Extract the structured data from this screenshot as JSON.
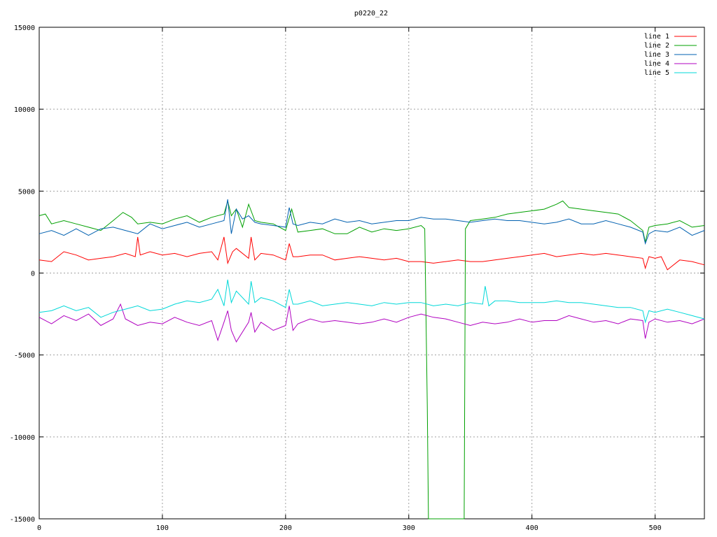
{
  "chart_data": {
    "type": "line",
    "title": "p0220_22",
    "xlabel": "",
    "ylabel": "",
    "xlim": [
      0,
      540
    ],
    "ylim": [
      -15000,
      15000
    ],
    "x_ticks": [
      0,
      100,
      200,
      300,
      400,
      500
    ],
    "y_ticks": [
      -15000,
      -10000,
      -5000,
      0,
      5000,
      10000,
      15000
    ],
    "grid": true,
    "legend_position": "top-right",
    "series": [
      {
        "name": "line 1",
        "color": "#ff0000",
        "x": [
          0,
          10,
          20,
          30,
          40,
          50,
          60,
          70,
          78,
          80,
          82,
          90,
          100,
          110,
          120,
          130,
          140,
          145,
          150,
          153,
          157,
          160,
          170,
          172,
          175,
          180,
          190,
          200,
          203,
          206,
          210,
          220,
          230,
          240,
          250,
          260,
          270,
          280,
          290,
          300,
          310,
          320,
          330,
          340,
          350,
          360,
          370,
          380,
          390,
          400,
          410,
          420,
          430,
          440,
          450,
          460,
          470,
          480,
          490,
          492,
          495,
          500,
          505,
          510,
          520,
          530,
          540
        ],
        "y": [
          800,
          700,
          1300,
          1100,
          800,
          900,
          1000,
          1200,
          1000,
          2200,
          1100,
          1300,
          1100,
          1200,
          1000,
          1200,
          1300,
          800,
          2200,
          600,
          1300,
          1500,
          900,
          2200,
          800,
          1200,
          1100,
          800,
          1800,
          1000,
          1000,
          1100,
          1100,
          800,
          900,
          1000,
          900,
          800,
          900,
          700,
          700,
          600,
          700,
          800,
          700,
          700,
          800,
          900,
          1000,
          1100,
          1200,
          1000,
          1100,
          1200,
          1100,
          1200,
          1100,
          1000,
          900,
          300,
          1000,
          900,
          1000,
          200,
          800,
          700,
          500
        ]
      },
      {
        "name": "line 2",
        "color": "#00a000",
        "x": [
          0,
          5,
          10,
          20,
          30,
          40,
          50,
          60,
          68,
          75,
          80,
          90,
          100,
          110,
          120,
          130,
          140,
          150,
          153,
          156,
          160,
          165,
          170,
          175,
          180,
          190,
          200,
          205,
          210,
          220,
          230,
          240,
          250,
          260,
          270,
          280,
          290,
          300,
          310,
          313,
          315,
          316,
          345,
          346,
          350,
          360,
          370,
          380,
          390,
          400,
          410,
          420,
          425,
          430,
          440,
          450,
          460,
          470,
          480,
          490,
          492,
          495,
          500,
          510,
          520,
          530,
          540
        ],
        "y": [
          3500,
          3600,
          3000,
          3200,
          3000,
          2800,
          2600,
          3200,
          3700,
          3400,
          3000,
          3100,
          3000,
          3300,
          3500,
          3100,
          3400,
          3600,
          4400,
          3500,
          3900,
          2800,
          4200,
          3200,
          3100,
          3000,
          2600,
          3900,
          2500,
          2600,
          2700,
          2400,
          2400,
          2800,
          2500,
          2700,
          2600,
          2700,
          2900,
          2700,
          -8000,
          -15000,
          -15000,
          2700,
          3200,
          3300,
          3400,
          3600,
          3700,
          3800,
          3900,
          4200,
          4400,
          4000,
          3900,
          3800,
          3700,
          3600,
          3200,
          2600,
          1900,
          2800,
          2900,
          3000,
          3200,
          2800,
          2900
        ]
      },
      {
        "name": "line 3",
        "color": "#0060b0",
        "x": [
          0,
          10,
          20,
          30,
          40,
          50,
          60,
          70,
          80,
          90,
          100,
          110,
          120,
          130,
          140,
          150,
          153,
          156,
          160,
          165,
          170,
          175,
          180,
          190,
          200,
          203,
          206,
          210,
          220,
          230,
          240,
          250,
          260,
          270,
          280,
          290,
          300,
          310,
          320,
          330,
          340,
          350,
          360,
          370,
          380,
          390,
          400,
          410,
          420,
          430,
          440,
          450,
          460,
          470,
          480,
          490,
          492,
          495,
          500,
          510,
          520,
          530,
          540
        ],
        "y": [
          2400,
          2600,
          2300,
          2700,
          2300,
          2700,
          2800,
          2600,
          2400,
          3000,
          2700,
          2900,
          3100,
          2800,
          3000,
          3200,
          4500,
          2400,
          3900,
          3300,
          3500,
          3100,
          3000,
          2900,
          2800,
          4000,
          3000,
          2900,
          3100,
          3000,
          3300,
          3100,
          3200,
          3000,
          3100,
          3200,
          3200,
          3400,
          3300,
          3300,
          3200,
          3100,
          3200,
          3300,
          3200,
          3200,
          3100,
          3000,
          3100,
          3300,
          3000,
          3000,
          3200,
          3000,
          2800,
          2500,
          1800,
          2400,
          2600,
          2500,
          2800,
          2300,
          2600
        ]
      },
      {
        "name": "line 4",
        "color": "#b000c0",
        "x": [
          0,
          10,
          20,
          30,
          40,
          50,
          60,
          66,
          70,
          80,
          90,
          100,
          110,
          120,
          130,
          140,
          145,
          150,
          153,
          156,
          160,
          170,
          172,
          175,
          180,
          190,
          200,
          203,
          206,
          210,
          220,
          230,
          240,
          250,
          260,
          270,
          280,
          290,
          300,
          310,
          320,
          330,
          340,
          350,
          360,
          370,
          380,
          390,
          400,
          410,
          420,
          430,
          440,
          450,
          460,
          470,
          480,
          490,
          492,
          495,
          500,
          510,
          520,
          530,
          540
        ],
        "y": [
          -2700,
          -3100,
          -2600,
          -2900,
          -2500,
          -3200,
          -2800,
          -1900,
          -2800,
          -3200,
          -3000,
          -3100,
          -2700,
          -3000,
          -3200,
          -2900,
          -4100,
          -3000,
          -2300,
          -3500,
          -4200,
          -3000,
          -2400,
          -3600,
          -3000,
          -3500,
          -3200,
          -2000,
          -3500,
          -3100,
          -2800,
          -3000,
          -2900,
          -3000,
          -3100,
          -3000,
          -2800,
          -3000,
          -2700,
          -2500,
          -2700,
          -2800,
          -3000,
          -3200,
          -3000,
          -3100,
          -3000,
          -2800,
          -3000,
          -2900,
          -2900,
          -2600,
          -2800,
          -3000,
          -2900,
          -3100,
          -2800,
          -2900,
          -4000,
          -3000,
          -2800,
          -3000,
          -2900,
          -3100,
          -2800
        ]
      },
      {
        "name": "line 5",
        "color": "#00d8d8",
        "x": [
          0,
          10,
          20,
          30,
          40,
          50,
          60,
          70,
          80,
          90,
          100,
          110,
          120,
          130,
          140,
          145,
          150,
          153,
          156,
          160,
          170,
          172,
          175,
          180,
          190,
          200,
          203,
          206,
          210,
          220,
          230,
          240,
          250,
          260,
          270,
          280,
          290,
          300,
          310,
          320,
          330,
          340,
          350,
          360,
          362,
          365,
          370,
          380,
          390,
          400,
          410,
          420,
          430,
          440,
          450,
          460,
          470,
          480,
          490,
          492,
          495,
          500,
          510,
          520,
          530,
          540
        ],
        "y": [
          -2400,
          -2300,
          -2000,
          -2300,
          -2100,
          -2700,
          -2400,
          -2200,
          -2000,
          -2300,
          -2200,
          -1900,
          -1700,
          -1800,
          -1600,
          -1000,
          -2000,
          -400,
          -1800,
          -1100,
          -1900,
          -500,
          -1800,
          -1500,
          -1700,
          -2100,
          -1000,
          -1900,
          -1900,
          -1700,
          -2000,
          -1900,
          -1800,
          -1900,
          -2000,
          -1800,
          -1900,
          -1800,
          -1800,
          -2000,
          -1900,
          -2000,
          -1800,
          -1900,
          -800,
          -2000,
          -1700,
          -1700,
          -1800,
          -1800,
          -1800,
          -1700,
          -1800,
          -1800,
          -1900,
          -2000,
          -2100,
          -2100,
          -2300,
          -3000,
          -2300,
          -2400,
          -2200,
          -2400,
          -2600,
          -2800
        ]
      }
    ]
  }
}
